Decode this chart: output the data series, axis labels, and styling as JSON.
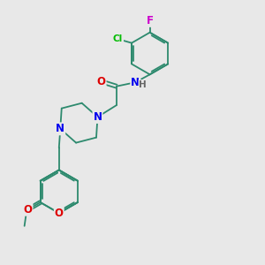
{
  "bg_color": "#e8e8e8",
  "bond_color": "#2d8a6e",
  "atom_colors": {
    "O": "#dd0000",
    "N": "#0000ee",
    "Cl": "#00bb00",
    "F": "#cc00cc",
    "C": "#2d8a6e"
  },
  "font_size": 8.5,
  "lw": 1.3
}
